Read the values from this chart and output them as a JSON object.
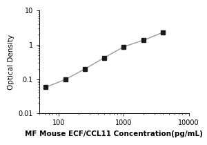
{
  "x": [
    62.5,
    125,
    250,
    500,
    1000,
    2000,
    4000
  ],
  "y": [
    0.058,
    0.097,
    0.197,
    0.42,
    0.88,
    1.35,
    2.3
  ],
  "xlim": [
    50,
    10000
  ],
  "ylim": [
    0.01,
    10
  ],
  "xlabel": "MF Mouse ECF/CCL11 Concentration(pg/mL)",
  "ylabel": "Optical Density",
  "marker": "s",
  "marker_color": "#1a1a1a",
  "line_color": "#999999",
  "marker_size": 4,
  "line_width": 1.0,
  "bg_color": "#ffffff",
  "xlabel_fontsize": 7.5,
  "ylabel_fontsize": 7.5,
  "tick_fontsize": 7,
  "yticks": [
    0.01,
    0.1,
    1,
    10
  ],
  "ytick_labels": [
    "0.01",
    "0.1",
    "1",
    "10"
  ],
  "xticks": [
    100,
    1000,
    10000
  ],
  "xtick_labels": [
    "100",
    "1000",
    "10000"
  ]
}
